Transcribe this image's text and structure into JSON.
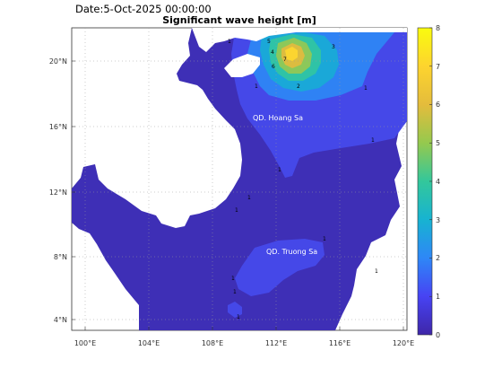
{
  "date_label": "Date:5-Oct-2025 00:00:00",
  "title": "Significant wave height [m]",
  "lon_ticks": [
    "100°E",
    "104°E",
    "108°E",
    "112°E",
    "116°E",
    "120°E"
  ],
  "lat_ticks": [
    "20°N",
    "16°N",
    "12°N",
    "8°N",
    "4°N"
  ],
  "places": [
    {
      "name": "QD. Hoang Sa"
    },
    {
      "name": "QD. Truong Sa"
    }
  ],
  "colorbar": {
    "min": 0,
    "max": 8,
    "ticks": [
      "0",
      "1",
      "2",
      "3",
      "4",
      "5",
      "6",
      "7",
      "8"
    ],
    "colormap": "parula",
    "colors": [
      "#3e26a8",
      "#4743f3",
      "#2e87f7",
      "#17b3d1",
      "#33c79b",
      "#95c94e",
      "#e4bc3c",
      "#fdd42e",
      "#f9fb0e"
    ]
  },
  "map": {
    "lon_range": [
      99.3,
      120.3
    ],
    "lat_range": [
      3.2,
      22.0
    ],
    "grid": "dotted",
    "sea_color": "#3e30b8",
    "land_color": "#ffffff"
  }
}
